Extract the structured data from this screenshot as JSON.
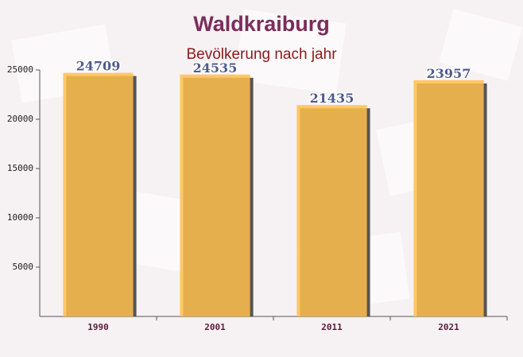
{
  "chart_data": {
    "type": "bar",
    "title": "Waldkraiburg",
    "subtitle": "Bevölkerung nach jahr",
    "categories": [
      "1990",
      "2001",
      "2011",
      "2021"
    ],
    "values": [
      24709,
      24535,
      21435,
      23957
    ],
    "color": "#ffc04d",
    "ylim": [
      0,
      25000
    ],
    "yticks": [
      5000,
      10000,
      15000,
      20000,
      25000
    ]
  }
}
